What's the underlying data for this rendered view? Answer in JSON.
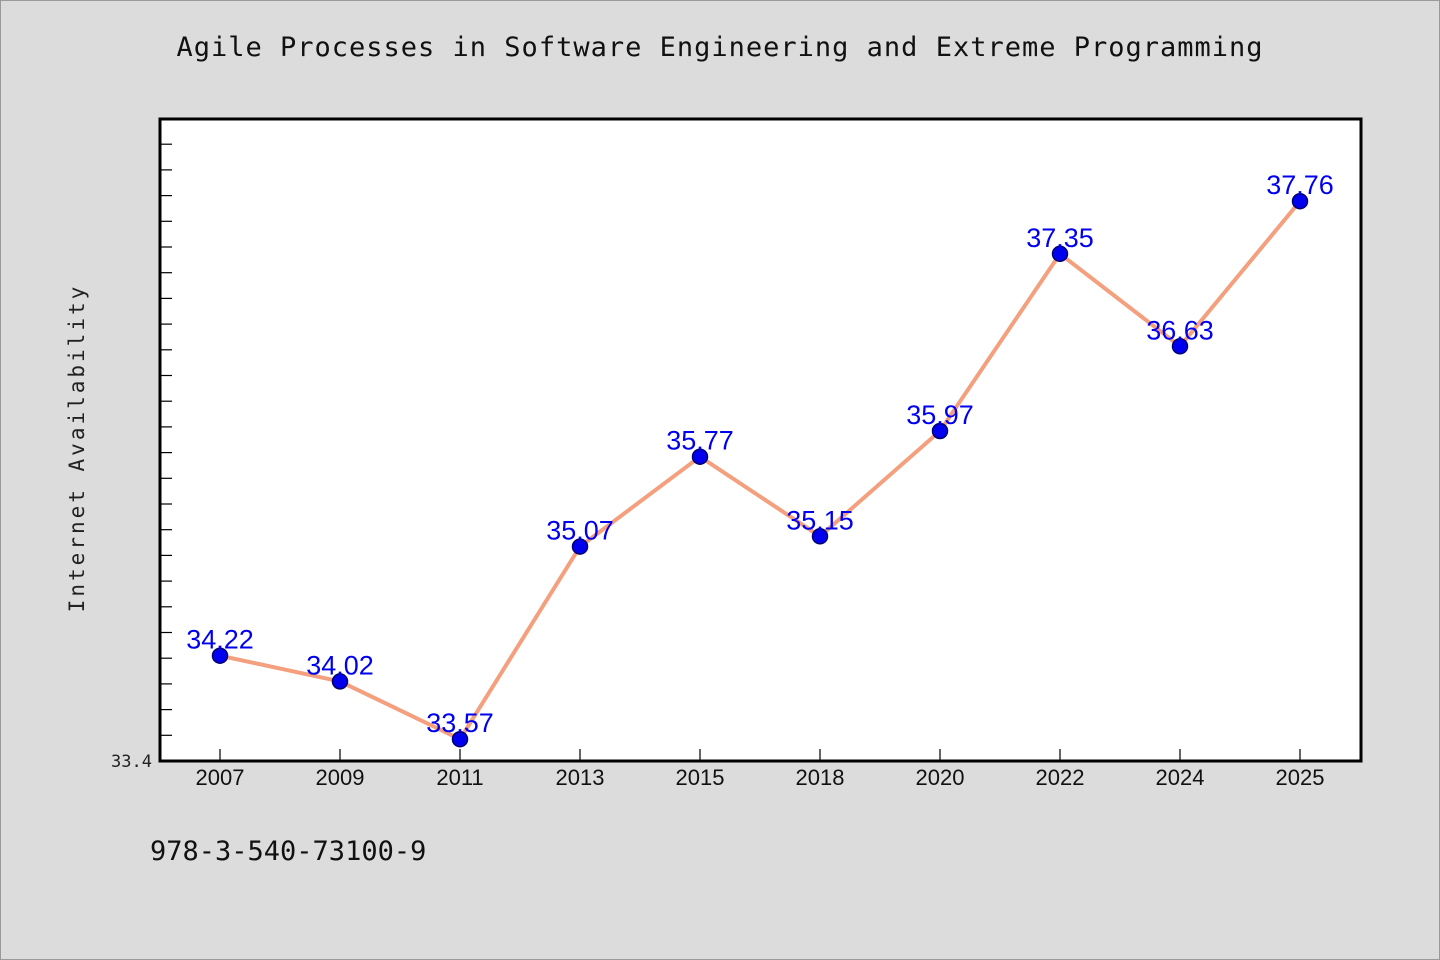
{
  "chart_data": {
    "type": "line",
    "title": "Agile Processes in Software Engineering and Extreme Programming",
    "xlabel": "",
    "ylabel": "Internet Availability",
    "categories": [
      "2007",
      "2009",
      "2011",
      "2013",
      "2015",
      "2018",
      "2020",
      "2022",
      "2024",
      "2025"
    ],
    "series": [
      {
        "values": [
          34.22,
          34.02,
          33.57,
          35.07,
          35.77,
          35.15,
          35.97,
          37.35,
          36.63,
          37.76
        ],
        "labels": [
          "34.22",
          "34.02",
          "33.57",
          "35.07",
          "35.77",
          "35.15",
          "35.97",
          "37.35",
          "36.63",
          "37.76"
        ]
      }
    ],
    "ylim": [
      33.4,
      38.4
    ],
    "y_tick_labels": [
      "33.4"
    ],
    "grid": false,
    "legend": "none",
    "colors": {
      "line": "#f4a07e",
      "marker": "#0000ee",
      "marker_edge": "#00006e",
      "data_label": "#0000ee",
      "plot_background": "#ffffff",
      "page_background": "#dcdcdc"
    }
  },
  "footer": {
    "code": "978-3-540-73100-9"
  }
}
